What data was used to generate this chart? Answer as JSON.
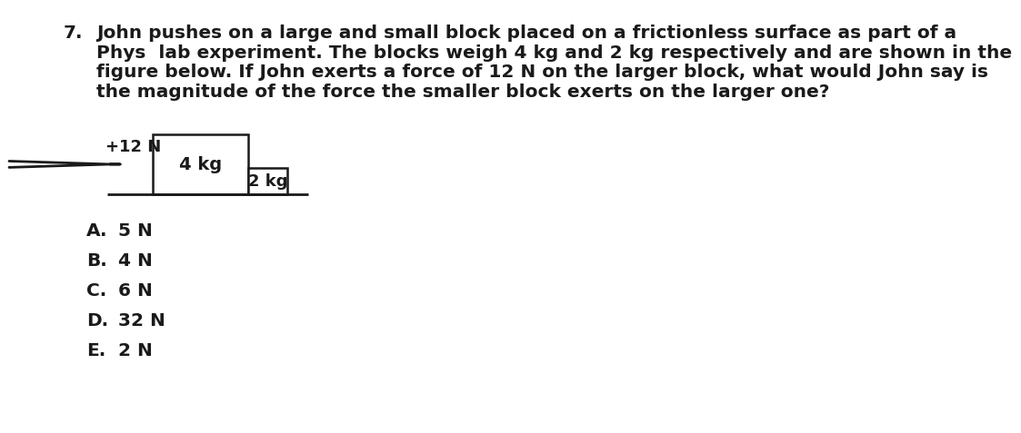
{
  "bg_color": "#ffffff",
  "question_number": "7.",
  "question_text_line1": "John pushes on a large and small block placed on a frictionless surface as part of a",
  "question_text_line2": "Phys  lab experiment. The blocks weigh 4 kg and 2 kg respectively and are shown in the",
  "question_text_line3": "figure below. If John exerts a force of 12 N on the larger block, what would John say is",
  "question_text_line4": "the magnitude of the force the smaller block exerts on the larger one?",
  "force_label": "+12 N",
  "large_block_label": "4 kg",
  "small_block_label": "2 kg",
  "choices": [
    {
      "letter": "A.",
      "text": "5 N"
    },
    {
      "letter": "B.",
      "text": "4 N"
    },
    {
      "letter": "C.",
      "text": "6 N"
    },
    {
      "letter": "D.",
      "text": "32 N"
    },
    {
      "letter": "E.",
      "text": "2 N"
    }
  ],
  "text_color": "#1a1a1a",
  "block_fill_color": "#ffffff",
  "block_edge_color": "#1a1a1a",
  "surface_color": "#1a1a1a",
  "arrow_color": "#1a1a1a",
  "font_size_question": 14.5,
  "font_size_choices": 14.5,
  "font_size_diagram": 13,
  "font_weight": "bold",
  "font_family": "DejaVu Sans"
}
